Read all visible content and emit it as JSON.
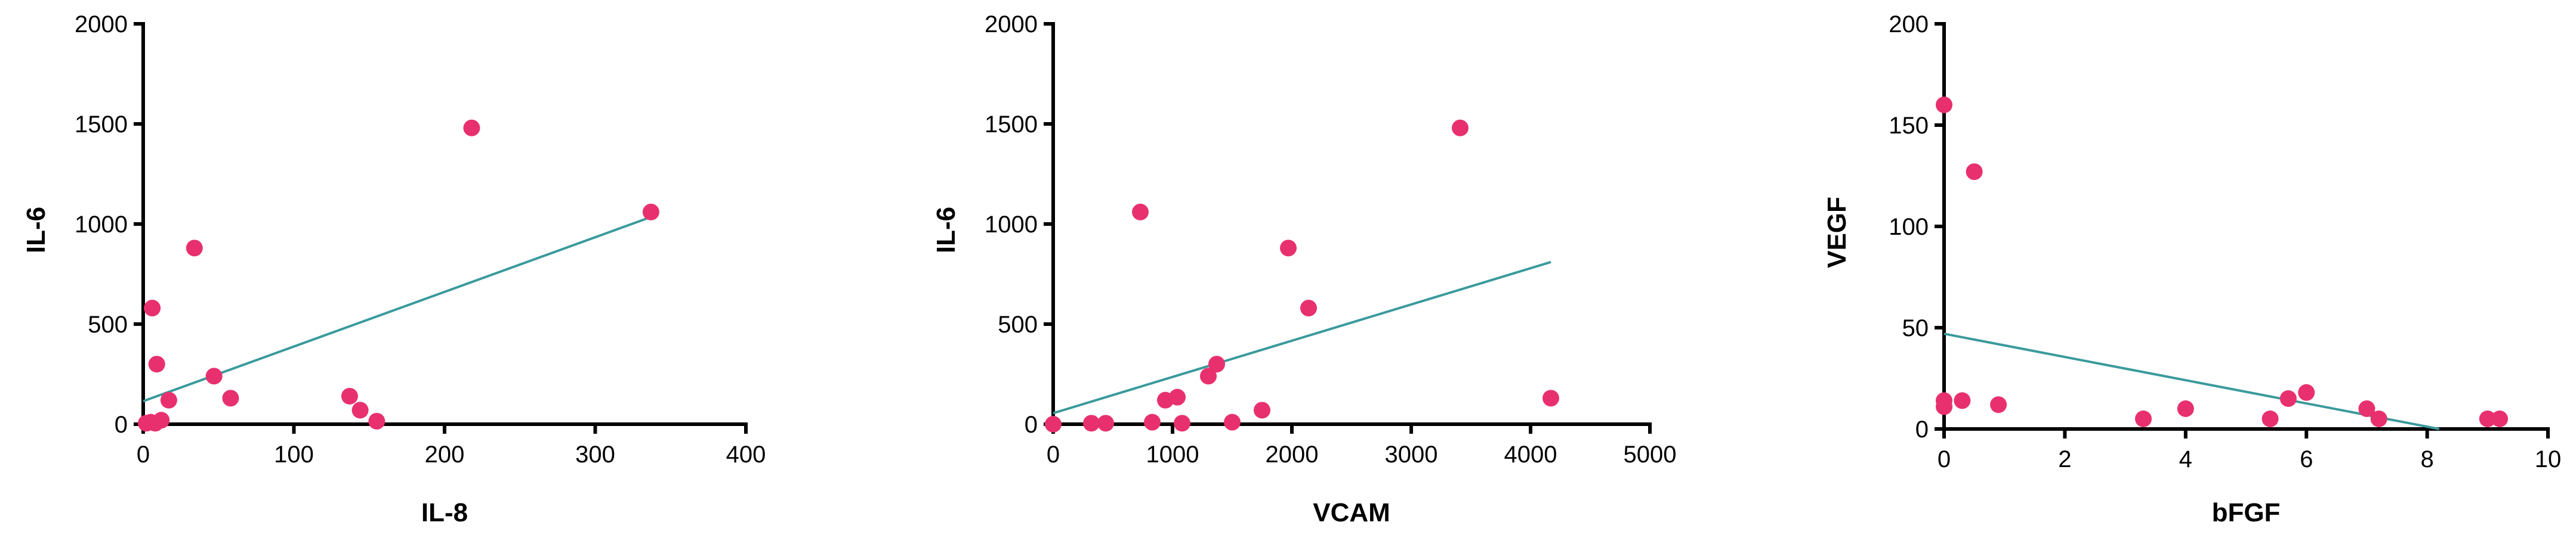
{
  "colors": {
    "point": "#e8306f",
    "trend": "#3a9a9c",
    "axis": "#000000"
  },
  "chart_data": [
    {
      "type": "scatter",
      "xlabel": "IL-8",
      "ylabel": "IL-6",
      "xlim": [
        0,
        400
      ],
      "ylim": [
        0,
        2000
      ],
      "xticks": [
        0,
        100,
        200,
        300,
        400
      ],
      "yticks": [
        0,
        500,
        1000,
        1500,
        2000
      ],
      "grid": false,
      "points": [
        {
          "x": 2,
          "y": 5
        },
        {
          "x": 5,
          "y": 10
        },
        {
          "x": 8,
          "y": 5
        },
        {
          "x": 12,
          "y": 20
        },
        {
          "x": 6,
          "y": 580
        },
        {
          "x": 9,
          "y": 300
        },
        {
          "x": 17,
          "y": 120
        },
        {
          "x": 34,
          "y": 880
        },
        {
          "x": 47,
          "y": 240
        },
        {
          "x": 58,
          "y": 130
        },
        {
          "x": 137,
          "y": 140
        },
        {
          "x": 144,
          "y": 70
        },
        {
          "x": 155,
          "y": 15
        },
        {
          "x": 218,
          "y": 1480
        },
        {
          "x": 337,
          "y": 1060
        }
      ],
      "trendline": {
        "x": [
          0,
          337
        ],
        "y": [
          115,
          1035
        ]
      }
    },
    {
      "type": "scatter",
      "xlabel": "VCAM",
      "ylabel": "IL-6",
      "xlim": [
        0,
        5000
      ],
      "ylim": [
        0,
        2000
      ],
      "xticks": [
        0,
        1000,
        2000,
        3000,
        4000,
        5000
      ],
      "yticks": [
        0,
        500,
        1000,
        1500,
        2000
      ],
      "grid": false,
      "points": [
        {
          "x": 0,
          "y": 0
        },
        {
          "x": 320,
          "y": 5
        },
        {
          "x": 440,
          "y": 5
        },
        {
          "x": 730,
          "y": 1060
        },
        {
          "x": 830,
          "y": 10
        },
        {
          "x": 940,
          "y": 120
        },
        {
          "x": 1040,
          "y": 135
        },
        {
          "x": 1080,
          "y": 5
        },
        {
          "x": 1300,
          "y": 240
        },
        {
          "x": 1370,
          "y": 300
        },
        {
          "x": 1500,
          "y": 10
        },
        {
          "x": 1750,
          "y": 70
        },
        {
          "x": 1970,
          "y": 880
        },
        {
          "x": 2140,
          "y": 580
        },
        {
          "x": 3410,
          "y": 1480
        },
        {
          "x": 4170,
          "y": 130
        }
      ],
      "trendline": {
        "x": [
          0,
          4170
        ],
        "y": [
          55,
          810
        ]
      }
    },
    {
      "type": "scatter",
      "xlabel": "bFGF",
      "ylabel": "VEGF",
      "xlim": [
        0,
        10
      ],
      "ylim": [
        0,
        200
      ],
      "xticks": [
        0,
        2,
        4,
        6,
        8,
        10
      ],
      "yticks": [
        0,
        50,
        100,
        150,
        200
      ],
      "grid": false,
      "points": [
        {
          "x": 0,
          "y": 160
        },
        {
          "x": 0,
          "y": 14
        },
        {
          "x": 0,
          "y": 11
        },
        {
          "x": 0.3,
          "y": 14
        },
        {
          "x": 0.5,
          "y": 127
        },
        {
          "x": 0.9,
          "y": 12
        },
        {
          "x": 3.3,
          "y": 5
        },
        {
          "x": 4.0,
          "y": 10
        },
        {
          "x": 5.4,
          "y": 5
        },
        {
          "x": 5.7,
          "y": 15
        },
        {
          "x": 6.0,
          "y": 18
        },
        {
          "x": 7.0,
          "y": 10
        },
        {
          "x": 7.2,
          "y": 5
        },
        {
          "x": 9.0,
          "y": 5
        },
        {
          "x": 9.2,
          "y": 5
        }
      ],
      "trendline": {
        "x": [
          0,
          8.2
        ],
        "y": [
          47,
          0
        ]
      }
    }
  ]
}
